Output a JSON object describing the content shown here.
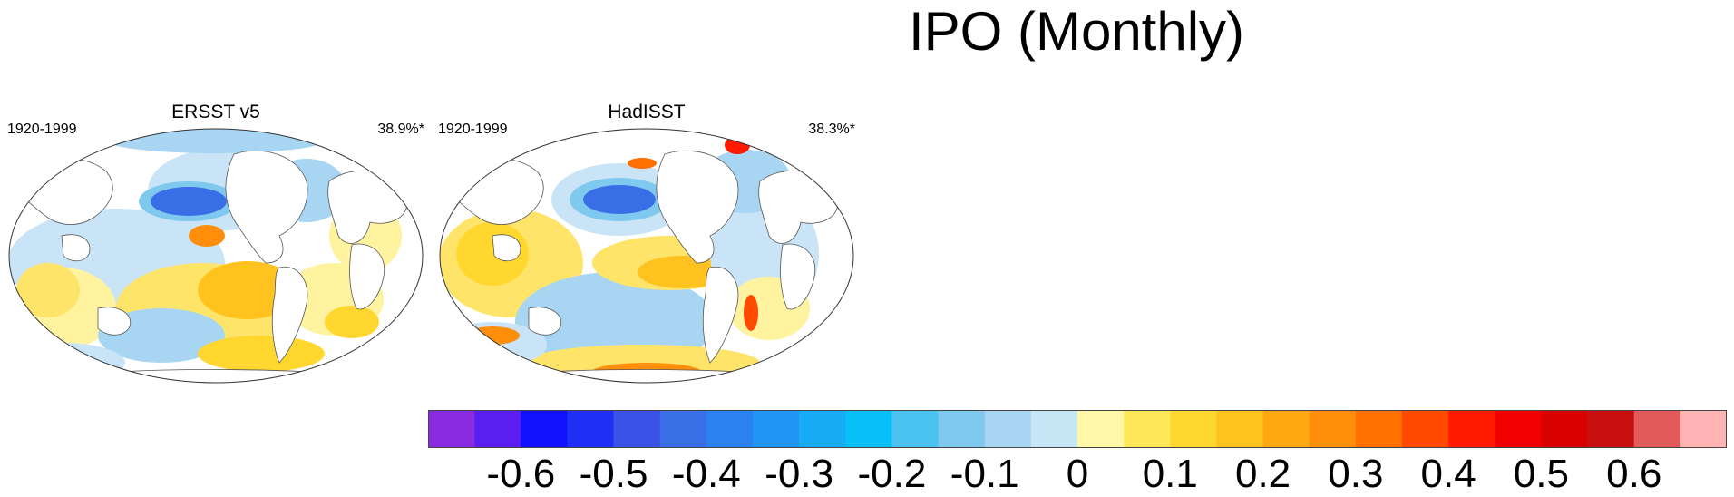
{
  "figure": {
    "title": "IPO (Monthly)"
  },
  "panels": [
    {
      "name": "ERSST v5",
      "period": "1920-1999",
      "variance": "38.9%*"
    },
    {
      "name": "HadISST",
      "period": "1920-1999",
      "variance": "38.3%*"
    }
  ],
  "colorbar": {
    "colors": [
      "#8a2be2",
      "#5a1ff0",
      "#1212ff",
      "#1f2ff4",
      "#3a53e6",
      "#3a6ee6",
      "#2a82f0",
      "#1f95f5",
      "#18abf5",
      "#08bff8",
      "#4ac2f0",
      "#7fc8ee",
      "#a8d6f2",
      "#c6e6f5",
      "#fff8a8",
      "#ffe95a",
      "#ffd72f",
      "#ffc21f",
      "#ffa812",
      "#ff8f0a",
      "#ff7000",
      "#ff4a00",
      "#ff1a00",
      "#f20000",
      "#d90000",
      "#c81010",
      "#e35a5a",
      "#ffb3b3"
    ],
    "tick_labels": [
      "-0.6",
      "-0.5",
      "-0.4",
      "-0.3",
      "-0.2",
      "-0.1",
      "0",
      "0.1",
      "0.2",
      "0.3",
      "0.4",
      "0.5",
      "0.6"
    ]
  }
}
